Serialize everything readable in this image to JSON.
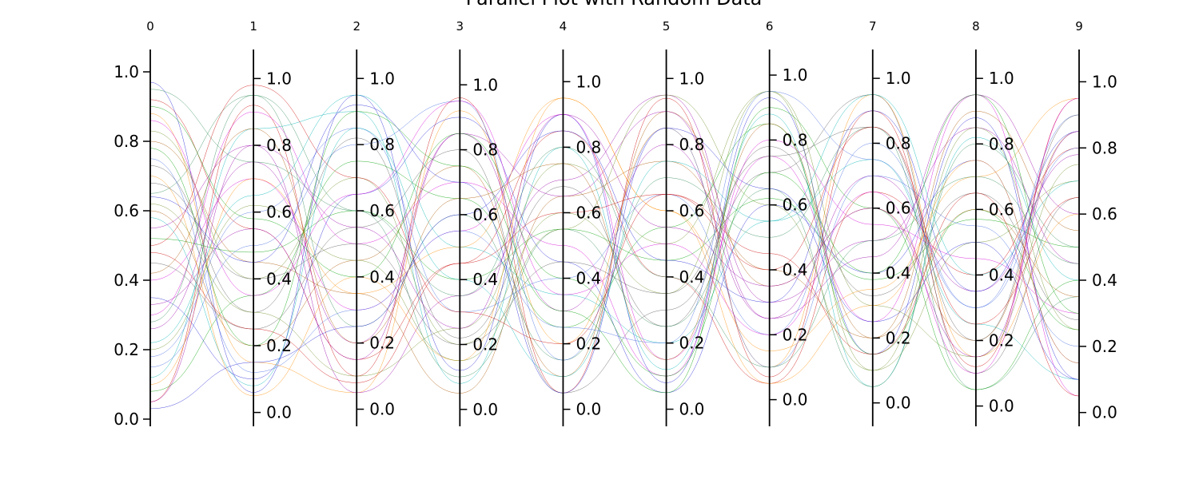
{
  "chart_data": {
    "type": "parallel-coordinates",
    "title": "Parallel Plot with Random Data",
    "axes": [
      "0",
      "1",
      "2",
      "3",
      "4",
      "5",
      "6",
      "7",
      "8",
      "9"
    ],
    "ylim": [
      0,
      1
    ],
    "curve": "smooth",
    "grid": false,
    "tick_values": [
      0.0,
      0.2,
      0.4,
      0.6,
      0.8,
      1.0
    ],
    "tick_labels": [
      "0.0",
      "0.2",
      "0.4",
      "0.6",
      "0.8",
      "1.0"
    ],
    "axis_ranges": [
      {
        "axis": "0",
        "min": 0.0,
        "max": 1.0
      },
      {
        "axis": "1",
        "min": -0.02,
        "max": 1.02
      },
      {
        "axis": "2",
        "min": -0.03,
        "max": 1.02
      },
      {
        "axis": "3",
        "min": -0.03,
        "max": 1.04
      },
      {
        "axis": "4",
        "min": -0.03,
        "max": 1.03
      },
      {
        "axis": "5",
        "min": -0.03,
        "max": 1.02
      },
      {
        "axis": "6",
        "min": -0.06,
        "max": 1.01
      },
      {
        "axis": "7",
        "min": -0.05,
        "max": 1.02
      },
      {
        "axis": "8",
        "min": -0.04,
        "max": 1.02
      },
      {
        "axis": "9",
        "min": -0.02,
        "max": 1.03
      }
    ],
    "series_colors": [
      "#1f1fd6",
      "#cc0000",
      "#00a000",
      "#9900aa",
      "#555555",
      "#ff8c00",
      "#00b3b3",
      "#aa5500",
      "#d400d4",
      "#6b8e23",
      "#4169e1",
      "#2e8b57"
    ],
    "series": [
      {
        "values": [
          0.97,
          0.06,
          0.95,
          0.12,
          0.9,
          0.08,
          0.93,
          0.15,
          0.88,
          0.1
        ]
      },
      {
        "values": [
          0.05,
          0.92,
          0.1,
          0.96,
          0.05,
          0.94,
          0.07,
          0.9,
          0.12,
          0.95
        ]
      },
      {
        "values": [
          0.52,
          0.48,
          0.6,
          0.4,
          0.55,
          0.45,
          0.62,
          0.38,
          0.57,
          0.5
        ]
      },
      {
        "values": [
          0.26,
          0.75,
          0.2,
          0.85,
          0.3,
          0.8,
          0.25,
          0.7,
          0.35,
          0.78
        ]
      },
      {
        "values": [
          0.73,
          0.3,
          0.82,
          0.22,
          0.68,
          0.25,
          0.78,
          0.33,
          0.65,
          0.28
        ]
      },
      {
        "values": [
          0.88,
          0.15,
          0.05,
          0.92,
          0.2,
          0.85,
          0.1,
          0.95,
          0.15,
          0.6
        ]
      },
      {
        "values": [
          0.12,
          0.85,
          0.9,
          0.08,
          0.8,
          0.12,
          0.88,
          0.05,
          0.82,
          0.4
        ]
      },
      {
        "values": [
          0.6,
          0.2,
          0.45,
          0.75,
          0.1,
          0.9,
          0.35,
          0.6,
          0.2,
          0.85
        ]
      },
      {
        "values": [
          0.4,
          0.7,
          0.3,
          0.55,
          0.9,
          0.15,
          0.75,
          0.25,
          0.95,
          0.05
        ]
      },
      {
        "values": [
          0.83,
          0.4,
          0.7,
          0.2,
          0.6,
          0.35,
          0.95,
          0.1,
          0.5,
          0.7
        ]
      },
      {
        "values": [
          0.18,
          0.6,
          0.85,
          0.3,
          0.4,
          0.65,
          0.2,
          0.8,
          0.3,
          0.9
        ]
      },
      {
        "values": [
          0.65,
          0.95,
          0.25,
          0.6,
          0.15,
          0.7,
          0.5,
          0.85,
          0.05,
          0.35
        ]
      },
      {
        "values": [
          0.35,
          0.1,
          0.65,
          0.9,
          0.45,
          0.05,
          0.6,
          0.4,
          0.75,
          0.15
        ]
      },
      {
        "values": [
          0.92,
          0.55,
          0.15,
          0.45,
          0.85,
          0.4,
          0.05,
          0.65,
          0.4,
          0.8
        ]
      },
      {
        "values": [
          0.08,
          0.35,
          0.75,
          0.65,
          0.25,
          0.55,
          0.85,
          0.15,
          0.6,
          0.25
        ]
      },
      {
        "values": [
          0.55,
          0.8,
          0.05,
          0.35,
          0.7,
          0.95,
          0.3,
          0.5,
          0.85,
          0.45
        ]
      },
      {
        "values": [
          0.45,
          0.25,
          0.55,
          0.8,
          0.05,
          0.3,
          0.7,
          0.95,
          0.1,
          0.65
        ]
      },
      {
        "values": [
          0.7,
          0.05,
          0.4,
          0.15,
          0.95,
          0.6,
          0.15,
          0.35,
          0.7,
          0.95
        ]
      },
      {
        "values": [
          0.22,
          0.65,
          0.95,
          0.5,
          0.35,
          0.2,
          0.55,
          0.75,
          0.25,
          0.1
        ]
      },
      {
        "values": [
          0.8,
          0.45,
          0.35,
          0.05,
          0.65,
          0.75,
          0.4,
          0.2,
          0.9,
          0.55
        ]
      },
      {
        "values": [
          0.3,
          0.9,
          0.5,
          0.7,
          0.5,
          0.1,
          0.8,
          0.55,
          0.45,
          0.3
        ]
      },
      {
        "values": [
          0.62,
          0.3,
          0.1,
          0.25,
          0.75,
          0.5,
          0.95,
          0.3,
          0.15,
          0.75
        ]
      },
      {
        "values": [
          0.15,
          0.5,
          0.8,
          0.95,
          0.15,
          0.85,
          0.1,
          0.7,
          0.55,
          0.2
        ]
      },
      {
        "values": [
          0.95,
          0.75,
          0.6,
          0.1,
          0.55,
          0.25,
          0.65,
          0.05,
          0.8,
          0.5
        ]
      },
      {
        "values": [
          0.03,
          0.15,
          0.25,
          0.6,
          0.85,
          0.45,
          0.3,
          0.9,
          0.35,
          0.85
        ]
      },
      {
        "values": [
          0.5,
          0.98,
          0.7,
          0.3,
          0.2,
          0.65,
          0.45,
          0.15,
          0.65,
          0.05
        ]
      },
      {
        "values": [
          0.78,
          0.2,
          0.9,
          0.75,
          0.3,
          0.05,
          0.9,
          0.6,
          0.05,
          0.4
        ]
      },
      {
        "values": [
          0.33,
          0.55,
          0.15,
          0.85,
          0.65,
          0.9,
          0.25,
          0.45,
          0.95,
          0.6
        ]
      },
      {
        "values": [
          0.68,
          0.4,
          0.5,
          0.2,
          0.45,
          0.35,
          0.75,
          0.85,
          0.2,
          0.9
        ]
      },
      {
        "values": [
          0.1,
          0.7,
          0.35,
          0.5,
          0.95,
          0.6,
          0.05,
          0.3,
          0.75,
          0.15
        ]
      },
      {
        "values": [
          0.58,
          0.08,
          0.85,
          0.4,
          0.1,
          0.75,
          0.55,
          0.95,
          0.4,
          0.7
        ]
      },
      {
        "values": [
          0.42,
          0.85,
          0.2,
          0.65,
          0.75,
          0.15,
          0.85,
          0.2,
          0.6,
          0.35
        ]
      },
      {
        "values": [
          0.86,
          0.35,
          0.65,
          0.95,
          0.35,
          0.5,
          0.2,
          0.65,
          0.1,
          0.95
        ]
      },
      {
        "values": [
          0.2,
          0.62,
          0.45,
          0.15,
          0.55,
          0.95,
          0.6,
          0.1,
          0.85,
          0.25
        ]
      },
      {
        "values": [
          0.75,
          0.12,
          0.3,
          0.55,
          0.25,
          0.2,
          0.95,
          0.75,
          0.3,
          0.8
        ]
      },
      {
        "values": [
          0.28,
          0.95,
          0.6,
          0.35,
          0.8,
          0.4,
          0.1,
          0.5,
          0.7,
          0.45
        ]
      },
      {
        "values": [
          0.64,
          0.45,
          0.92,
          0.7,
          0.05,
          0.85,
          0.65,
          0.25,
          0.5,
          0.1
        ]
      },
      {
        "values": [
          0.48,
          0.25,
          0.08,
          0.45,
          0.6,
          0.65,
          0.4,
          0.85,
          0.25,
          0.65
        ]
      },
      {
        "values": [
          0.9,
          0.58,
          0.4,
          0.85,
          0.4,
          0.1,
          0.7,
          0.4,
          0.95,
          0.3
        ]
      },
      {
        "values": [
          0.05,
          0.8,
          0.55,
          0.25,
          0.9,
          0.55,
          0.35,
          0.6,
          0.15,
          0.85
        ]
      }
    ]
  }
}
